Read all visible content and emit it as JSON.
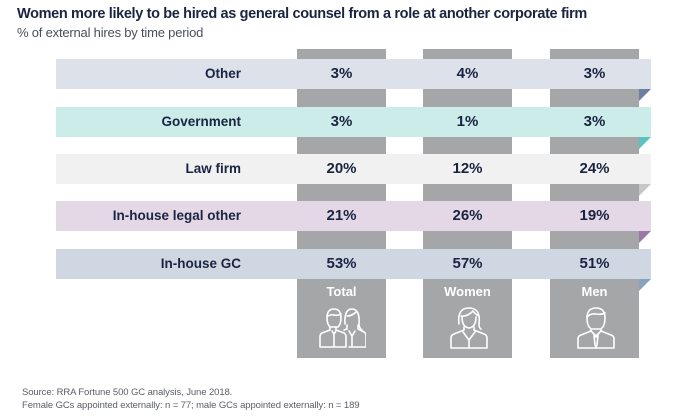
{
  "header": {
    "title": "Women more likely to be hired as general counsel from a role at another corporate firm",
    "subtitle": "% of external hires by time period"
  },
  "columns": [
    {
      "label": "Total",
      "icon": "man-and-woman-icon"
    },
    {
      "label": "Women",
      "icon": "woman-icon"
    },
    {
      "label": "Men",
      "icon": "man-icon"
    }
  ],
  "rows": [
    {
      "label": "Other",
      "values": [
        "3%",
        "4%",
        "3%"
      ],
      "band_color": "#dce1ea",
      "fold_color": "#6b7fa3"
    },
    {
      "label": "Government",
      "values": [
        "3%",
        "1%",
        "3%"
      ],
      "band_color": "#ccecea",
      "fold_color": "#5bc2c0"
    },
    {
      "label": "Law firm",
      "values": [
        "20%",
        "12%",
        "24%"
      ],
      "band_color": "#f1f1f1",
      "fold_color": "#c6c6c8"
    },
    {
      "label": "In-house legal other",
      "values": [
        "21%",
        "26%",
        "19%"
      ],
      "band_color": "#e4d8e6",
      "fold_color": "#9a79a8"
    },
    {
      "label": "In-house GC",
      "values": [
        "53%",
        "57%",
        "51%"
      ],
      "band_color": "#cfd8e2",
      "fold_color": "#8aa3bc"
    }
  ],
  "source": {
    "line1": "Source: RRA Fortune 500 GC analysis, June 2018.",
    "line2": "Female GCs appointed externally: n = 77; male GCs appointed externally: n = 189"
  },
  "colors": {
    "column_gray": "#a5a6a8",
    "text_navy": "#1a2440"
  },
  "chart_data": {
    "type": "table",
    "title": "Women more likely to be hired as general counsel from a role at another corporate firm",
    "subtitle": "% of external hires by time period",
    "categories": [
      "Other",
      "Government",
      "Law firm",
      "In-house legal other",
      "In-house GC"
    ],
    "series": [
      {
        "name": "Total",
        "values": [
          3,
          3,
          20,
          21,
          53
        ]
      },
      {
        "name": "Women",
        "values": [
          4,
          1,
          12,
          26,
          57
        ]
      },
      {
        "name": "Men",
        "values": [
          3,
          3,
          24,
          19,
          51
        ]
      }
    ],
    "unit": "%",
    "notes": [
      "Source: RRA Fortune 500 GC analysis, June 2018.",
      "Female GCs appointed externally: n = 77; male GCs appointed externally: n = 189"
    ]
  }
}
